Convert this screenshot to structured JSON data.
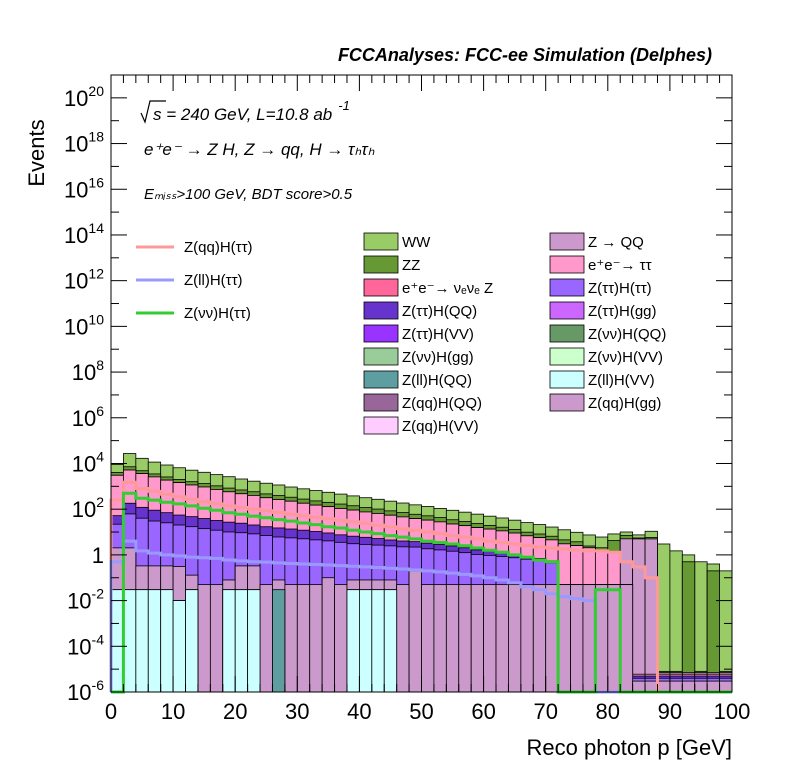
{
  "chart_data": {
    "type": "bar",
    "title": "FCCAnalyses: FCC-ee Simulation (Delphes)",
    "xlabel": "Reco photon p [GeV]",
    "ylabel": "Events",
    "xlim": [
      0,
      100
    ],
    "ylim": [
      1e-06,
      1e+21
    ],
    "yscale": "log",
    "bin_width": 2,
    "grid": false,
    "x_ticks": [
      "0",
      "10",
      "20",
      "30",
      "40",
      "50",
      "60",
      "70",
      "80",
      "90",
      "100"
    ],
    "y_ticks": [
      {
        "base": "10",
        "exp": "-6",
        "value": 1e-06
      },
      {
        "base": "10",
        "exp": "-4",
        "value": 0.0001
      },
      {
        "base": "10",
        "exp": "-2",
        "value": 0.01
      },
      {
        "base": "1",
        "exp": "",
        "value": 1
      },
      {
        "base": "10",
        "exp": "2",
        "value": 100.0
      },
      {
        "base": "10",
        "exp": "4",
        "value": 10000.0
      },
      {
        "base": "10",
        "exp": "6",
        "value": 1000000.0
      },
      {
        "base": "10",
        "exp": "8",
        "value": 100000000.0
      },
      {
        "base": "10",
        "exp": "10",
        "value": 10000000000.0
      },
      {
        "base": "10",
        "exp": "12",
        "value": 1000000000000.0
      },
      {
        "base": "10",
        "exp": "14",
        "value": 100000000000000.0
      },
      {
        "base": "10",
        "exp": "16",
        "value": 1e+16
      },
      {
        "base": "10",
        "exp": "18",
        "value": 1e+18
      },
      {
        "base": "10",
        "exp": "20",
        "value": 1e+20
      }
    ],
    "annotations": [
      {
        "sqrt": "s",
        "text": " = 240 GeV, L=10.8 ab",
        "sup": "-1"
      },
      {
        "text": "e⁺e⁻ → Z H, Z → qq, H → τₕτₕ"
      },
      {
        "text": "Eₘᵢₛₛ>100 GeV, BDT score>0.5"
      }
    ],
    "signal_lines": [
      {
        "name": "Z(qq)H(ττ)",
        "color": "#ff9999",
        "values": [
          250,
          1500,
          800,
          600,
          450,
          350,
          270,
          210,
          170,
          140,
          120,
          100,
          85,
          72,
          60,
          52,
          45,
          38,
          33,
          28,
          24,
          20,
          17,
          14,
          12,
          10,
          8.5,
          7,
          6,
          5,
          4,
          3.5,
          3,
          2.5,
          2.2,
          2,
          1.8,
          1.6,
          1.5,
          1.5,
          1.3,
          0.5,
          0.3,
          0.1,
          1e-06,
          1e-06,
          1e-06,
          1e-06,
          1e-06,
          1e-06
        ]
      },
      {
        "name": "Z(ll)H(ττ)",
        "color": "#9999ff",
        "values": [
          0.5,
          4,
          1.5,
          1.2,
          1,
          0.9,
          0.8,
          0.75,
          0.7,
          0.6,
          0.55,
          0.5,
          0.48,
          0.45,
          0.42,
          0.4,
          0.38,
          0.36,
          0.34,
          0.32,
          0.3,
          0.28,
          0.26,
          0.24,
          0.22,
          0.2,
          0.18,
          0.16,
          0.14,
          0.12,
          0.1,
          0.08,
          0.06,
          0.04,
          0.03,
          0.02,
          0.015,
          0.012,
          0.01,
          1e-06,
          1e-06,
          1e-06,
          1e-06,
          1e-06,
          1e-06,
          1e-06,
          1e-06,
          1e-06,
          1e-06,
          1e-06
        ]
      },
      {
        "name": "Z(νν)H(ττ)",
        "color": "#33cc33",
        "values": [
          1e-06,
          500,
          300,
          250,
          200,
          170,
          140,
          110,
          90,
          70,
          60,
          50,
          42,
          35,
          30,
          25,
          21,
          17,
          15,
          12,
          10,
          8.5,
          7,
          6,
          5,
          4,
          3.5,
          3,
          2.5,
          2,
          1.6,
          1.3,
          1,
          0.8,
          0.6,
          0.5,
          1e-06,
          1e-06,
          1e-06,
          0.03,
          0.03,
          1e-06,
          1e-06,
          1e-06,
          1e-06,
          1e-06,
          1e-06,
          1e-06,
          1e-06,
          1e-06
        ]
      }
    ],
    "stack": [
      {
        "name": "Z(ll)H(VV)",
        "color": "#ccffff",
        "values": [
          0.03,
          0.03,
          0.03,
          0.03,
          0.03,
          0.01,
          0.03,
          1e-06,
          1e-06,
          0.03,
          0.03,
          0.03,
          1e-06,
          1e-06,
          1e-06,
          1e-06,
          1e-06,
          1e-06,
          1e-06,
          0.03,
          0.03,
          0.03,
          0.03,
          1e-06,
          1e-06,
          1e-06,
          1e-06,
          1e-06,
          1e-06,
          1e-06,
          1e-06,
          1e-06,
          1e-06,
          1e-06,
          1e-06,
          1e-06,
          1e-06,
          1e-06,
          1e-06,
          1e-06,
          1e-06,
          1e-06,
          1e-06,
          1e-06,
          1e-06,
          1e-06,
          1e-06,
          1e-06,
          1e-06,
          1e-06
        ]
      },
      {
        "name": "Z(ll)H(QQ)",
        "color": "#5f9ea0",
        "values": [
          1e-06,
          1e-06,
          1e-06,
          1e-06,
          1e-06,
          1e-06,
          1e-06,
          1e-06,
          1e-06,
          1e-06,
          1e-06,
          1e-06,
          1e-06,
          0.03,
          1e-06,
          1e-06,
          1e-06,
          1e-06,
          1e-06,
          1e-06,
          1e-06,
          1e-06,
          1e-06,
          1e-06,
          1e-06,
          1e-06,
          1e-06,
          1e-06,
          1e-06,
          1e-06,
          1e-06,
          1e-06,
          1e-06,
          1e-06,
          1e-06,
          1e-06,
          1e-06,
          1e-06,
          1e-06,
          1e-06,
          1e-06,
          1e-06,
          1e-06,
          1e-06,
          1e-06,
          1e-06,
          1e-06,
          1e-06,
          1e-06,
          1e-06
        ]
      },
      {
        "name": "Z(qq)H(gg)",
        "color": "#cc99cc",
        "values": [
          2,
          2,
          0.3,
          0.3,
          0.3,
          0.3,
          0.1,
          0.05,
          0.05,
          0.05,
          0.3,
          0.3,
          0.05,
          0.05,
          0.05,
          0.05,
          0.05,
          0.1,
          0.05,
          0.05,
          0.05,
          0.05,
          0.05,
          0.05,
          0.2,
          0.05,
          0.05,
          0.05,
          0.05,
          0.05,
          0.05,
          0.05,
          0.05,
          0.05,
          0.05,
          0.05,
          0.05,
          0.05,
          0.05,
          0.05,
          0.05,
          0.05,
          1e-06,
          1e-06,
          1e-06,
          1e-06,
          1e-06,
          1e-06,
          1e-06,
          1e-06
        ]
      },
      {
        "name": "Z(ττ)H(ττ)",
        "color": "#9966ff",
        "values": [
          20,
          60,
          40,
          30,
          25,
          20,
          17,
          14,
          12,
          10,
          9,
          8,
          7,
          6,
          5.5,
          5,
          4.5,
          4,
          3.5,
          3,
          2.8,
          2.6,
          2.4,
          2.2,
          2,
          1.8,
          1.6,
          1.4,
          1.2,
          1,
          0.9,
          0.8,
          0.7,
          0.6,
          0.5,
          0.4,
          1e-06,
          1e-06,
          1e-06,
          1e-06,
          1e-06,
          1e-06,
          1e-06,
          1e-06,
          1e-06,
          1e-06,
          1e-06,
          1e-06,
          1e-06,
          1e-06
        ]
      },
      {
        "name": "Z(ττ)H(QQ)",
        "color": "#6633cc",
        "values": [
          30,
          120,
          80,
          60,
          45,
          35,
          30,
          25,
          20,
          17,
          15,
          12,
          10,
          9,
          8,
          7,
          6,
          5,
          4,
          3.5,
          3,
          2.5,
          2,
          1.8,
          1.6,
          1.4,
          1.2,
          1,
          0.8,
          0.6,
          0.5,
          0.4,
          0.3,
          0.2,
          0.15,
          0.1,
          1e-06,
          1e-06,
          1e-06,
          1e-06,
          1e-06,
          1e-06,
          1e-06,
          1e-06,
          1e-06,
          1e-06,
          1e-06,
          1e-06,
          1e-06,
          1e-06
        ]
      },
      {
        "name": "e⁺e⁻→ ττ",
        "color": "#ff99cc",
        "values": [
          3000,
          5000,
          3500,
          2500,
          1800,
          1400,
          1100,
          900,
          700,
          550,
          450,
          380,
          300,
          250,
          210,
          170,
          140,
          120,
          100,
          85,
          70,
          60,
          50,
          42,
          35,
          30,
          25,
          20,
          17,
          14,
          12,
          10,
          8,
          6,
          5,
          4,
          3,
          2.5,
          2,
          1.5,
          1.2,
          1e-06,
          1e-06,
          1e-06,
          1e-06,
          1e-06,
          1e-06,
          1e-06,
          1e-06,
          1e-06
        ]
      },
      {
        "name": "Z → QQ",
        "color": "#cc99cc",
        "values": [
          1e-06,
          1e-06,
          1e-06,
          1e-06,
          1e-06,
          1e-06,
          1e-06,
          1e-06,
          1e-06,
          1e-06,
          1e-06,
          1e-06,
          1e-06,
          1e-06,
          1e-06,
          1e-06,
          1e-06,
          1e-06,
          1e-06,
          1e-06,
          1e-06,
          1e-06,
          1e-06,
          1e-06,
          1e-06,
          1e-06,
          1e-06,
          1e-06,
          1e-06,
          1e-06,
          1e-06,
          1e-06,
          1e-06,
          1e-06,
          1e-06,
          1e-06,
          1e-06,
          1e-06,
          1e-06,
          1e-06,
          1e-06,
          5,
          5,
          5,
          1e-06,
          1e-06,
          1e-06,
          1e-06,
          1e-06,
          1e-06
        ]
      },
      {
        "name": "ZZ",
        "color": "#669933",
        "values": [
          1000,
          2000,
          1200,
          900,
          700,
          550,
          450,
          380,
          320,
          260,
          220,
          180,
          150,
          130,
          110,
          95,
          80,
          70,
          60,
          50,
          42,
          36,
          30,
          25,
          21,
          18,
          15,
          12,
          10,
          8,
          6,
          5,
          4,
          3,
          2.5,
          2,
          1.5,
          1.2,
          0.4,
          0.5,
          3,
          2,
          0.5,
          0.8,
          1e-06,
          1e-06,
          0.5,
          1e-06,
          0.2,
          1e-06
        ]
      },
      {
        "name": "WW",
        "color": "#99cc66",
        "values": [
          5000,
          20000,
          12000,
          8000,
          6000,
          4500,
          3500,
          2800,
          2200,
          1800,
          1400,
          1100,
          900,
          750,
          600,
          500,
          420,
          350,
          290,
          240,
          200,
          170,
          140,
          115,
          95,
          80,
          65,
          55,
          45,
          37,
          30,
          25,
          20,
          16,
          13,
          10,
          8,
          6,
          5,
          4,
          4,
          3,
          2,
          5,
          3,
          1.5,
          0.5,
          0.5,
          0.2,
          0.2
        ]
      },
      {
        "name": "e⁺e⁻→ νₑνₑ Z",
        "color": "#ff6699",
        "values": []
      },
      {
        "name": "Z(ττ)H(gg)",
        "color": "#cc66ff",
        "values": []
      },
      {
        "name": "Z(ττ)H(VV)",
        "color": "#9933ff",
        "values": []
      },
      {
        "name": "Z(νν)H(QQ)",
        "color": "#669966",
        "values": []
      },
      {
        "name": "Z(νν)H(gg)",
        "color": "#99cc99",
        "values": []
      },
      {
        "name": "Z(νν)H(VV)",
        "color": "#ccffcc",
        "values": []
      },
      {
        "name": "Z(qq)H(QQ)",
        "color": "#996699",
        "values": []
      },
      {
        "name": "Z(qq)H(VV)",
        "color": "#ffccff",
        "values": []
      }
    ],
    "legend_lines_order": [
      "Z(qq)H(ττ)",
      "Z(ll)H(ττ)",
      "Z(νν)H(ττ)"
    ],
    "legend_fill_columns": [
      [
        "WW",
        "ZZ",
        "e⁺e⁻→ νₑνₑ Z",
        "Z(ττ)H(QQ)",
        "Z(ττ)H(VV)",
        "Z(νν)H(gg)",
        "Z(ll)H(QQ)",
        "Z(qq)H(QQ)",
        "Z(qq)H(VV)"
      ],
      [
        "Z → QQ",
        "e⁺e⁻→ ττ",
        "Z(ττ)H(ττ)",
        "Z(ττ)H(gg)",
        "Z(νν)H(QQ)",
        "Z(νν)H(VV)",
        "Z(ll)H(VV)",
        "Z(qq)H(gg)"
      ]
    ]
  }
}
